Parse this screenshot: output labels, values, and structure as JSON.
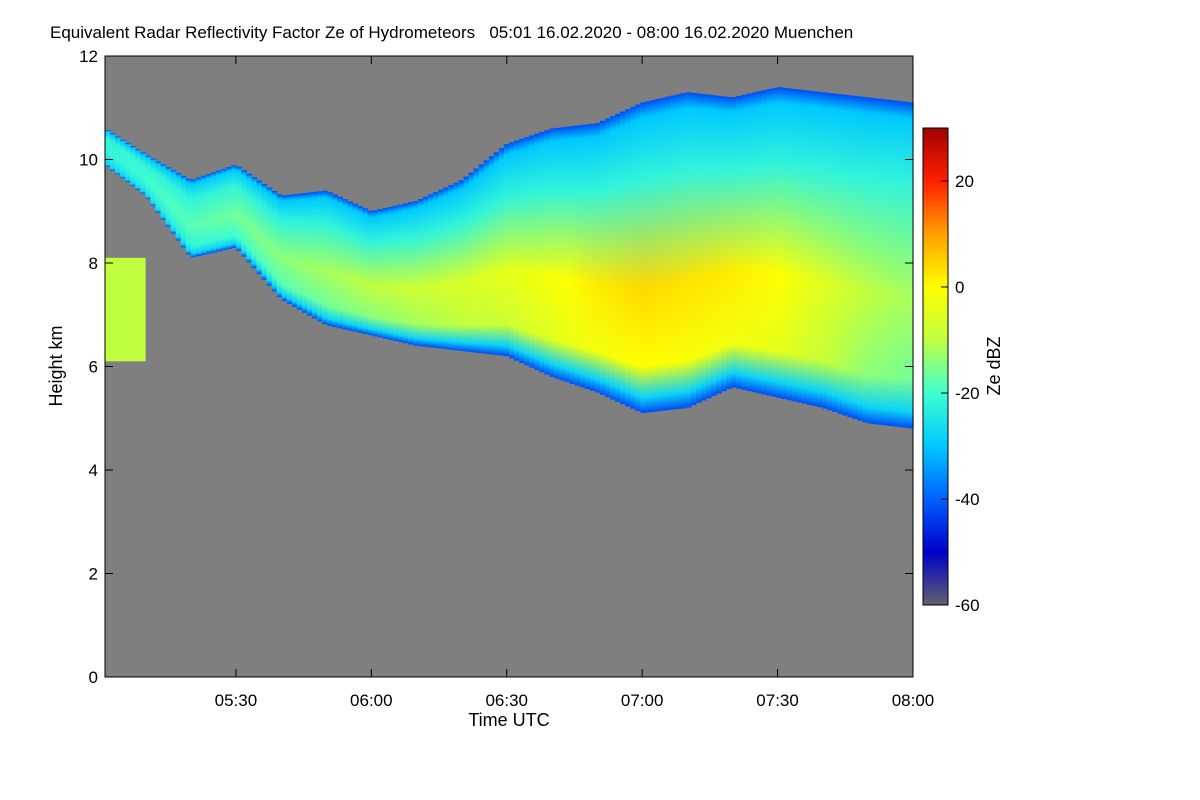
{
  "chart_data": {
    "type": "heatmap",
    "title": "Equivalent Radar Reflectivity Factor Ze of Hydrometeors   05:01 16.02.2020 - 08:00 16.02.2020 Muenchen",
    "xlabel": "Time UTC",
    "ylabel": "Height km",
    "colorbar_label": "Ze dBZ",
    "x_ticks": [
      "05:30",
      "06:00",
      "06:30",
      "07:00",
      "07:30",
      "08:00"
    ],
    "x_tick_values_min": [
      330,
      360,
      390,
      420,
      450,
      480
    ],
    "xlim_min": [
      301,
      480
    ],
    "y_ticks": [
      "0",
      "2",
      "4",
      "6",
      "8",
      "10",
      "12"
    ],
    "y_tick_values": [
      0,
      2,
      4,
      6,
      8,
      10,
      12
    ],
    "ylim": [
      0,
      12
    ],
    "colorbar_ticks": [
      "20",
      "0",
      "-20",
      "-40",
      "-60"
    ],
    "colorbar_tick_values": [
      20,
      0,
      -20,
      -40,
      -60
    ],
    "colorbar_range": [
      -60,
      30
    ],
    "background_color": "#7f7f7f",
    "colormap": [
      "#606070",
      "#0000c8",
      "#0060ff",
      "#00c8ff",
      "#40ffd0",
      "#c0ff40",
      "#ffff00",
      "#ffa000",
      "#ff2000",
      "#a00000"
    ],
    "echo_layer": {
      "time_min": [
        301,
        310,
        320,
        330,
        340,
        350,
        360,
        370,
        380,
        390,
        400,
        410,
        420,
        430,
        440,
        450,
        460,
        470,
        480
      ],
      "top_km": [
        10.6,
        10.1,
        9.6,
        9.9,
        9.3,
        9.4,
        9.0,
        9.2,
        9.6,
        10.3,
        10.6,
        10.7,
        11.1,
        11.3,
        11.2,
        11.4,
        11.3,
        11.2,
        11.1
      ],
      "base_km": [
        9.9,
        9.3,
        8.1,
        8.3,
        7.3,
        6.8,
        6.6,
        6.4,
        6.3,
        6.2,
        5.8,
        5.5,
        5.1,
        5.2,
        5.6,
        5.4,
        5.2,
        4.9,
        4.8
      ],
      "peak_dbz": [
        -22,
        -20,
        -18,
        -16,
        -14,
        -12,
        -10,
        -8,
        -6,
        -4,
        -1,
        2,
        4,
        3,
        2,
        0,
        -5,
        -10,
        -12
      ]
    },
    "small_echo": {
      "time_range_min": [
        301,
        310
      ],
      "height_range_km": [
        6.1,
        8.1
      ],
      "dbz": -10
    }
  }
}
